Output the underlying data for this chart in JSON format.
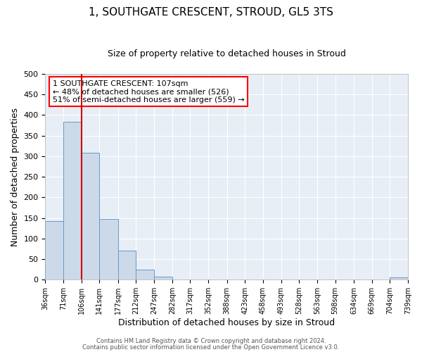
{
  "title": "1, SOUTHGATE CRESCENT, STROUD, GL5 3TS",
  "subtitle": "Size of property relative to detached houses in Stroud",
  "xlabel": "Distribution of detached houses by size in Stroud",
  "ylabel": "Number of detached properties",
  "bar_edges": [
    36,
    71,
    106,
    141,
    177,
    212,
    247,
    282,
    317,
    352,
    388,
    423,
    458,
    493,
    528,
    563,
    598,
    634,
    669,
    704,
    739
  ],
  "bar_heights": [
    143,
    383,
    308,
    148,
    70,
    24,
    8,
    0,
    0,
    0,
    0,
    0,
    0,
    0,
    0,
    0,
    0,
    0,
    0,
    5
  ],
  "bar_color": "#ccd9e8",
  "bar_edge_color": "#6699cc",
  "vline_x": 107,
  "vline_color": "#cc0000",
  "ylim": [
    0,
    500
  ],
  "yticks": [
    0,
    50,
    100,
    150,
    200,
    250,
    300,
    350,
    400,
    450,
    500
  ],
  "annotation_text_line1": "1 SOUTHGATE CRESCENT: 107sqm",
  "annotation_text_line2": "← 48% of detached houses are smaller (526)",
  "annotation_text_line3": "51% of semi-detached houses are larger (559) →",
  "footer_line1": "Contains HM Land Registry data © Crown copyright and database right 2024.",
  "footer_line2": "Contains public sector information licensed under the Open Government Licence v3.0.",
  "tick_labels": [
    "36sqm",
    "71sqm",
    "106sqm",
    "141sqm",
    "177sqm",
    "212sqm",
    "247sqm",
    "282sqm",
    "317sqm",
    "352sqm",
    "388sqm",
    "423sqm",
    "458sqm",
    "493sqm",
    "528sqm",
    "563sqm",
    "598sqm",
    "634sqm",
    "669sqm",
    "704sqm",
    "739sqm"
  ],
  "plot_bg_color": "#e8eef5",
  "fig_bg_color": "#ffffff",
  "grid_color": "#ffffff",
  "title_fontsize": 11,
  "subtitle_fontsize": 9,
  "axis_label_fontsize": 9,
  "tick_fontsize": 7,
  "annotation_fontsize": 8,
  "footer_fontsize": 6
}
